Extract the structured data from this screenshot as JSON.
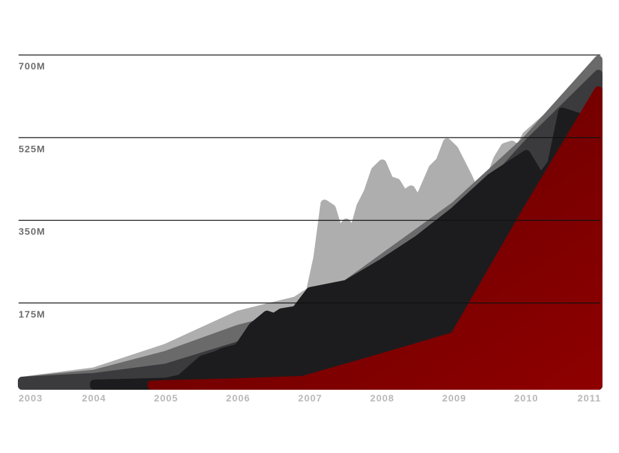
{
  "chart_data": {
    "type": "area",
    "title": "",
    "xlabel": "",
    "ylabel": "",
    "xlim": [
      2003,
      2011
    ],
    "ylim": [
      0,
      700
    ],
    "y_ticks": [
      {
        "value": 700,
        "label": "700M"
      },
      {
        "value": 525,
        "label": "525M"
      },
      {
        "value": 350,
        "label": "350M"
      },
      {
        "value": 175,
        "label": "175M"
      }
    ],
    "x_ticks": [
      {
        "value": 2003,
        "label": "2003"
      },
      {
        "value": 2004,
        "label": "2004"
      },
      {
        "value": 2005,
        "label": "2005"
      },
      {
        "value": 2006,
        "label": "2006"
      },
      {
        "value": 2007,
        "label": "2007"
      },
      {
        "value": 2008,
        "label": "2008"
      },
      {
        "value": 2009,
        "label": "2009"
      },
      {
        "value": 2010,
        "label": "2010"
      },
      {
        "value": 2011,
        "label": "2011"
      }
    ],
    "grid": "horizontal",
    "legend": "none",
    "series": [
      {
        "color": "#aeaeae",
        "points": [
          [
            2003,
            10
          ],
          [
            2004,
            30
          ],
          [
            2005,
            80
          ],
          [
            2006,
            150
          ],
          [
            2006.8,
            180
          ],
          [
            2007.0,
            200
          ],
          [
            2007.1,
            270
          ],
          [
            2007.2,
            385
          ],
          [
            2007.3,
            375
          ],
          [
            2007.4,
            325
          ],
          [
            2007.5,
            345
          ],
          [
            2007.6,
            325
          ],
          [
            2007.7,
            380
          ],
          [
            2007.8,
            410
          ],
          [
            2007.9,
            455
          ],
          [
            2008.0,
            470
          ],
          [
            2008.1,
            435
          ],
          [
            2008.2,
            430
          ],
          [
            2008.3,
            405
          ],
          [
            2008.4,
            415
          ],
          [
            2008.5,
            390
          ],
          [
            2008.6,
            425
          ],
          [
            2008.7,
            460
          ],
          [
            2008.8,
            475
          ],
          [
            2008.9,
            515
          ],
          [
            2009.0,
            500
          ],
          [
            2009.1,
            470
          ],
          [
            2009.2,
            440
          ],
          [
            2009.3,
            405
          ],
          [
            2009.4,
            380
          ],
          [
            2009.5,
            440
          ],
          [
            2009.6,
            480
          ],
          [
            2009.7,
            505
          ],
          [
            2009.8,
            510
          ],
          [
            2009.9,
            500
          ],
          [
            2010.0,
            530
          ],
          [
            2010.3,
            570
          ],
          [
            2010.6,
            620
          ],
          [
            2011,
            690
          ]
        ]
      },
      {
        "color": "#6a6a6b",
        "points": [
          [
            2003,
            10
          ],
          [
            2004,
            25
          ],
          [
            2005,
            65
          ],
          [
            2006,
            120
          ],
          [
            2007,
            160
          ],
          [
            2008,
            270
          ],
          [
            2009,
            380
          ],
          [
            2010,
            520
          ],
          [
            2011,
            690
          ]
        ]
      },
      {
        "color": "#3b3b3e",
        "points": [
          [
            2003,
            10
          ],
          [
            2004,
            18
          ],
          [
            2005,
            38
          ],
          [
            2006,
            85
          ],
          [
            2007,
            130
          ],
          [
            2008,
            210
          ],
          [
            2009,
            340
          ],
          [
            2010,
            510
          ],
          [
            2011,
            660
          ]
        ]
      },
      {
        "color": "#1c1c1e",
        "points": [
          [
            2004,
            4
          ],
          [
            2005,
            8
          ],
          [
            2005.2,
            15
          ],
          [
            2005.5,
            55
          ],
          [
            2005.7,
            65
          ],
          [
            2005.8,
            72
          ],
          [
            2006.0,
            80
          ],
          [
            2006.2,
            125
          ],
          [
            2006.4,
            150
          ],
          [
            2006.5,
            145
          ],
          [
            2006.6,
            155
          ],
          [
            2006.8,
            160
          ],
          [
            2007.0,
            200
          ],
          [
            2007.5,
            215
          ],
          [
            2008.0,
            260
          ],
          [
            2008.5,
            310
          ],
          [
            2009.0,
            370
          ],
          [
            2009.5,
            440
          ],
          [
            2010.0,
            490
          ],
          [
            2010.2,
            440
          ],
          [
            2010.35,
            470
          ],
          [
            2010.5,
            580
          ],
          [
            2010.7,
            570
          ],
          [
            2011,
            560
          ]
        ]
      },
      {
        "color": "#8e0000",
        "points": [
          [
            2004.8,
            2
          ],
          [
            2005,
            3
          ],
          [
            2006,
            7
          ],
          [
            2006.9,
            12
          ],
          [
            2008,
            60
          ],
          [
            2009,
            105
          ],
          [
            2010,
            370
          ],
          [
            2011,
            625
          ]
        ]
      }
    ]
  }
}
